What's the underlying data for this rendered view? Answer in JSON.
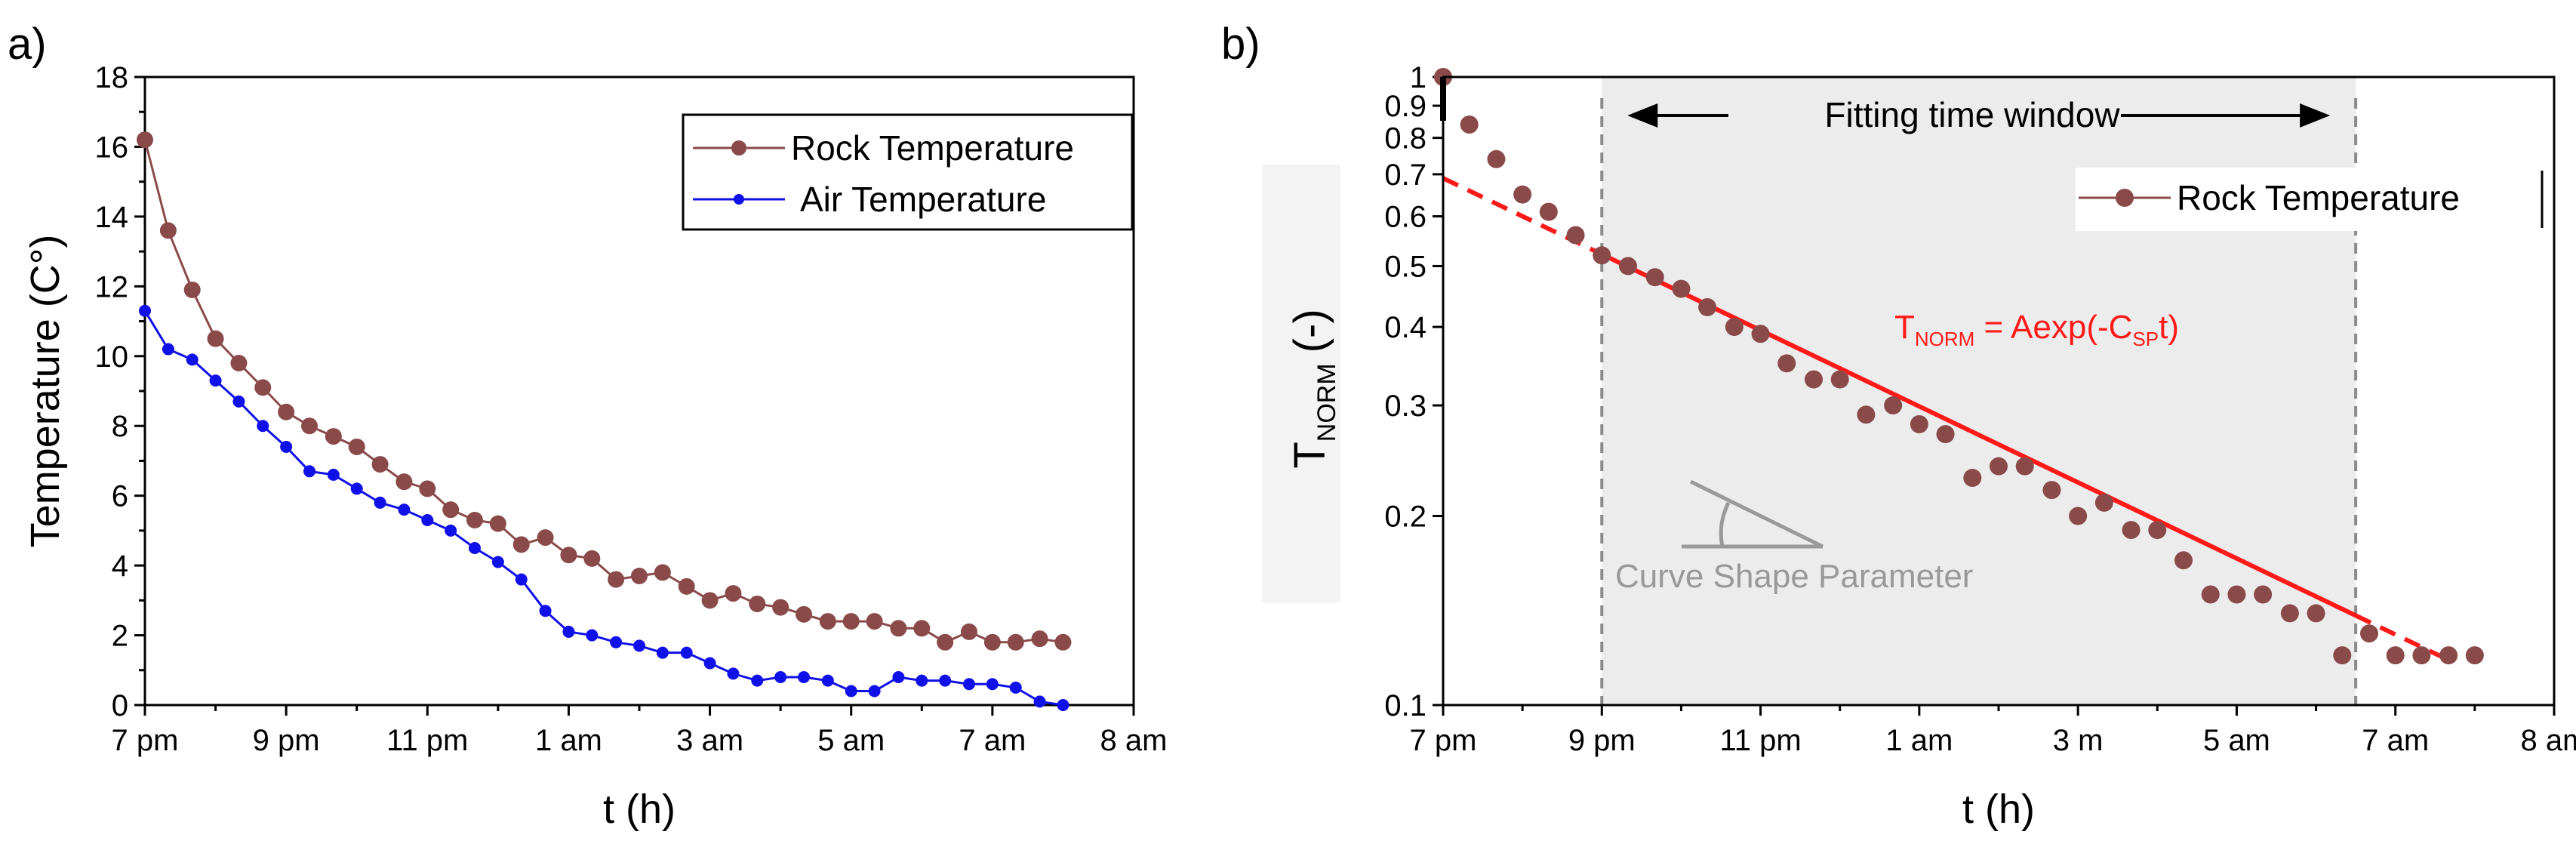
{
  "panel_a": {
    "label": "a)",
    "ylabel": "Temperature (C°)",
    "xlabel": "t (h)",
    "x_ticks": [
      "7 pm",
      "9 pm",
      "11 pm",
      "1 am",
      "3 am",
      "5 am",
      "7 am",
      "8 am"
    ],
    "y_ticks": [
      "0",
      "2",
      "4",
      "6",
      "8",
      "10",
      "12",
      "14",
      "16",
      "18"
    ]
  },
  "panel_b": {
    "label": "b)",
    "ylabel_main": "T",
    "ylabel_sub": "NORM",
    "ylabel_unit": "(-)",
    "xlabel": "t (h)",
    "x_ticks": [
      "7 pm",
      "9 pm",
      "11 pm",
      "1 am",
      "3 m",
      "5 am",
      "7 am",
      "8 am"
    ],
    "y_ticks": [
      "0.1",
      "0.2",
      "0.3",
      "0.4",
      "0.5",
      "0.6",
      "0.7",
      "0.8",
      "0.9",
      "1"
    ],
    "window_label": "Fitting  time window",
    "eq_prefix": "T",
    "eq_sub1": "NORM",
    "eq_mid": " = Aexp(-C",
    "eq_sub2": "SP",
    "eq_suffix": "t)",
    "angle_label": "Curve Shape Parameter"
  },
  "colors": {
    "rock": "#8b4a4a",
    "air": "#1010e8",
    "fit": "#ff1a1a",
    "window_fill": "#ececec",
    "window_line": "#8a8a8a",
    "angle": "#999999"
  },
  "chart_data": [
    {
      "type": "line",
      "x_unit": "hours after 7 pm",
      "xlim": [
        0,
        14
      ],
      "ylim": [
        0,
        18
      ],
      "grid": false,
      "legend_position": "top-right",
      "series": [
        {
          "name": "Rock Temperature",
          "x": [
            0,
            0.33,
            0.67,
            1.0,
            1.33,
            1.67,
            2.0,
            2.33,
            2.67,
            3.0,
            3.33,
            3.67,
            4.0,
            4.33,
            4.67,
            5.0,
            5.33,
            5.67,
            6.0,
            6.33,
            6.67,
            7.0,
            7.33,
            7.67,
            8.0,
            8.33,
            8.67,
            9.0,
            9.33,
            9.67,
            10.0,
            10.33,
            10.67,
            11.0,
            11.33,
            11.67,
            12.0,
            12.33,
            12.67,
            13.0
          ],
          "values": [
            16.2,
            13.6,
            11.9,
            10.5,
            9.8,
            9.1,
            8.4,
            8.0,
            7.7,
            7.4,
            6.9,
            6.4,
            6.2,
            5.6,
            5.3,
            5.2,
            4.6,
            4.8,
            4.3,
            4.2,
            3.6,
            3.7,
            3.8,
            3.4,
            3.0,
            3.2,
            2.9,
            2.8,
            2.6,
            2.4,
            2.4,
            2.4,
            2.2,
            2.2,
            1.8,
            2.1,
            1.8,
            1.8,
            1.9,
            1.8
          ]
        },
        {
          "name": "Air Temperature",
          "x": [
            0,
            0.33,
            0.67,
            1.0,
            1.33,
            1.67,
            2.0,
            2.33,
            2.67,
            3.0,
            3.33,
            3.67,
            4.0,
            4.33,
            4.67,
            5.0,
            5.33,
            5.67,
            6.0,
            6.33,
            6.67,
            7.0,
            7.33,
            7.67,
            8.0,
            8.33,
            8.67,
            9.0,
            9.33,
            9.67,
            10.0,
            10.33,
            10.67,
            11.0,
            11.33,
            11.67,
            12.0,
            12.33,
            12.67,
            13.0
          ],
          "values": [
            11.3,
            10.2,
            9.9,
            9.3,
            8.7,
            8.0,
            7.4,
            6.7,
            6.6,
            6.2,
            5.8,
            5.6,
            5.3,
            5.0,
            4.5,
            4.1,
            3.6,
            2.7,
            2.1,
            2.0,
            1.8,
            1.7,
            1.5,
            1.5,
            1.2,
            0.9,
            0.7,
            0.8,
            0.8,
            0.7,
            0.4,
            0.4,
            0.8,
            0.7,
            0.7,
            0.6,
            0.6,
            0.5,
            0.1,
            0.0
          ]
        }
      ]
    },
    {
      "type": "scatter",
      "x_unit": "hours after 7 pm",
      "xlim": [
        0,
        14
      ],
      "ylim": [
        0.1,
        1
      ],
      "y_scale": "log",
      "grid": false,
      "legend_position": "top-right",
      "fitting_window": [
        2,
        11.5
      ],
      "series": [
        {
          "name": "Rock Temperature",
          "x": [
            0,
            0.33,
            0.67,
            1.0,
            1.33,
            1.67,
            2.0,
            2.33,
            2.67,
            3.0,
            3.33,
            3.67,
            4.0,
            4.33,
            4.67,
            5.0,
            5.33,
            5.67,
            6.0,
            6.33,
            6.67,
            7.0,
            7.33,
            7.67,
            8.0,
            8.33,
            8.67,
            9.0,
            9.33,
            9.67,
            10.0,
            10.33,
            10.67,
            11.0,
            11.33,
            11.67,
            12.0,
            12.33,
            12.67,
            13.0
          ],
          "values": [
            1.0,
            0.84,
            0.74,
            0.65,
            0.61,
            0.56,
            0.52,
            0.5,
            0.48,
            0.46,
            0.43,
            0.4,
            0.39,
            0.35,
            0.33,
            0.33,
            0.29,
            0.3,
            0.28,
            0.27,
            0.23,
            0.24,
            0.24,
            0.22,
            0.2,
            0.21,
            0.19,
            0.19,
            0.17,
            0.15,
            0.15,
            0.15,
            0.14,
            0.14,
            0.12,
            0.13,
            0.12,
            0.12,
            0.12,
            0.12
          ]
        },
        {
          "x": [
            0,
            14
          ],
          "values": [
            0.69,
            0.098
          ]
        }
      ]
    }
  ]
}
